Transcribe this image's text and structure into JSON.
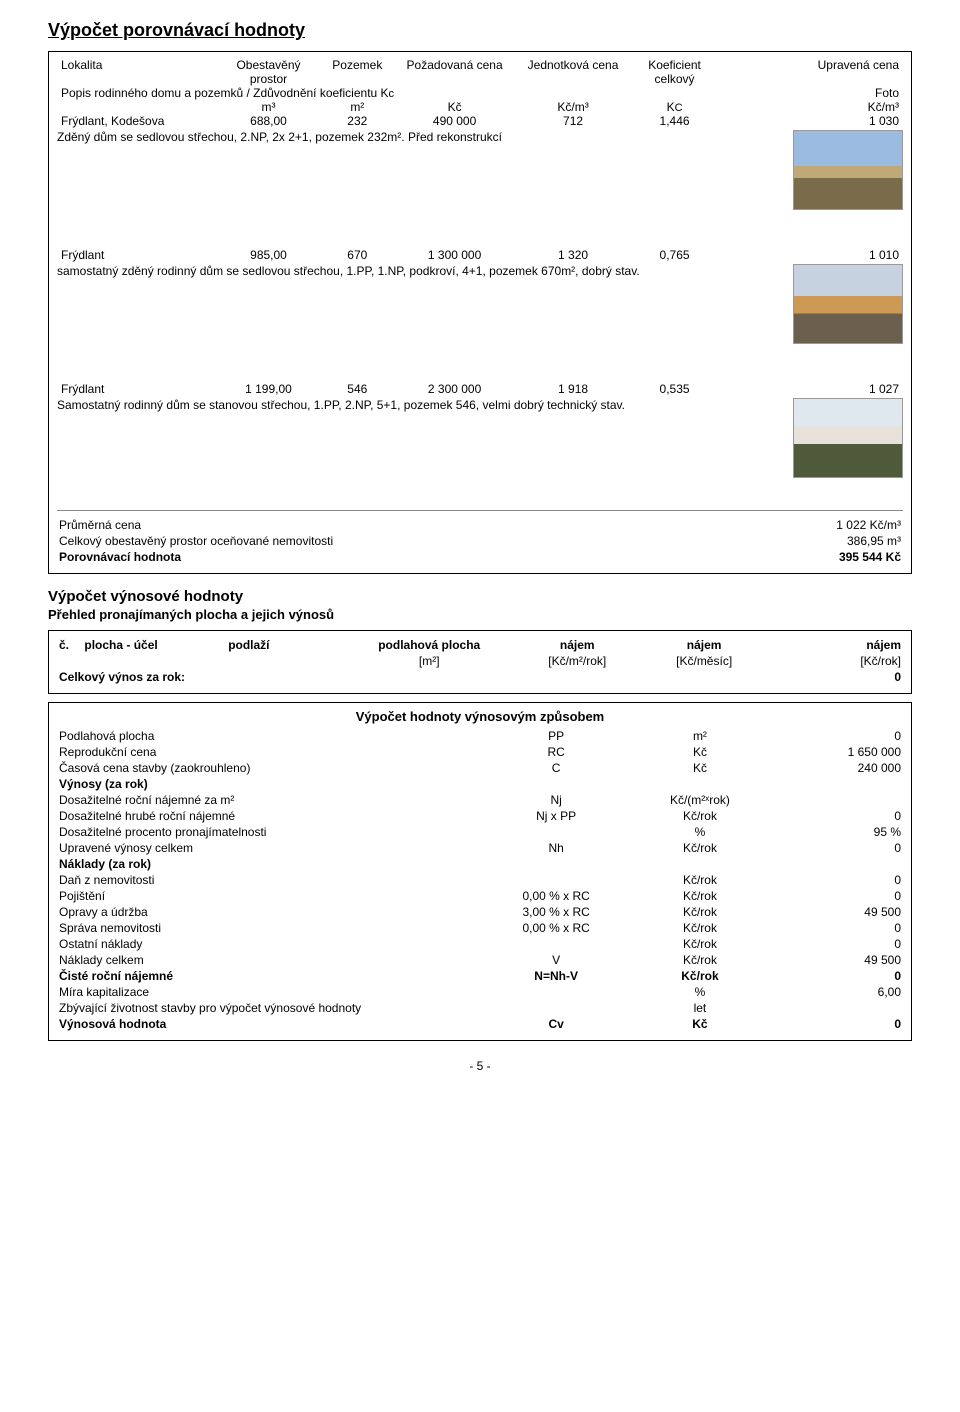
{
  "title": "Výpočet porovnávací hodnoty",
  "hdr": {
    "c1": "Lokalita",
    "c2": "Obestavěný prostor",
    "c3": "Pozemek",
    "c4": "Požadovaná cena",
    "c5": "Jednotková cena",
    "c6": "Koeficient celkový",
    "c7": "Upravená cena",
    "popis": "Popis rodinného domu a pozemků / Zdůvodnění koeficientu K",
    "popis_sub": "c",
    "foto": "Foto",
    "u_m3": "m³",
    "u_m2": "m²",
    "u_kc": "Kč",
    "u_kcm3": "Kč/m³",
    "u_kcm3b": "Kč/m³",
    "u_kc_c": "K",
    "u_kc_c_sub": "C"
  },
  "comps": [
    {
      "lok": "Frýdlant, Kodešova",
      "op": "688,00",
      "poz": "232",
      "cena": "490 000",
      "jc": "712",
      "k": "1,446",
      "upr": "1 030",
      "desc": "Zděný dům se sedlovou střechou, 2.NP, 2x 2+1, pozemek 232m². Před rekonstrukcí",
      "thumb_class": ""
    },
    {
      "lok": "Frýdlant",
      "op": "985,00",
      "poz": "670",
      "cena": "1 300 000",
      "jc": "1 320",
      "k": "0,765",
      "upr": "1 010",
      "desc": "samostatný zděný rodinný dům se sedlovou střechou, 1.PP, 1.NP, podkroví, 4+1, pozemek 670m², dobrý stav.",
      "thumb_class": "t2"
    },
    {
      "lok": "Frýdlant",
      "op": "1 199,00",
      "poz": "546",
      "cena": "2 300 000",
      "jc": "1 918",
      "k": "0,535",
      "upr": "1 027",
      "desc": "Samostatný rodinný dům se stanovou střechou, 1.PP, 2.NP, 5+1, pozemek 546, velmi dobrý technický stav.",
      "thumb_class": "t3"
    }
  ],
  "summary": {
    "avg_label": "Průměrná cena",
    "avg_val": "1 022 Kč/m³",
    "op_label": "Celkový obestavěný prostor oceňované nemovitosti",
    "op_val": "386,95 m³",
    "ph_label": "Porovnávací hodnota",
    "ph_val": "395 544 Kč"
  },
  "yield_title": "Výpočet výnosové hodnoty",
  "yield_sub": "Přehled pronajímaných plocha a jejich výnosů",
  "yield_hdr": {
    "c": "č.",
    "plocha": "plocha - účel",
    "podl": "podlaží",
    "pp": "podlahová plocha",
    "pp_u": "[m²]",
    "n1": "nájem",
    "n1_u": "[Kč/m²/rok]",
    "n2": "nájem",
    "n2_u": "[Kč/měsíc]",
    "n3": "nájem",
    "n3_u": "[Kč/rok]",
    "total": "Celkový výnos za rok:",
    "total_v": "0"
  },
  "yield2_title": "Výpočet hodnoty výnosovým způsobem",
  "y": {
    "rows": [
      {
        "a": "Podlahová plocha",
        "b": "PP",
        "c": "m²",
        "d": "0"
      },
      {
        "a": "Reprodukční cena",
        "b": "RC",
        "c": "Kč",
        "d": "1 650 000"
      },
      {
        "a": "Časová cena stavby (zaokrouhleno)",
        "b": "C",
        "c": "Kč",
        "d": "240 000"
      },
      {
        "a": "Výnosy (za rok)",
        "b": "",
        "c": "",
        "d": "",
        "bold": true
      },
      {
        "a": "Dosažitelné roční nájemné za m²",
        "b": "Nj",
        "c": "Kč/(m²ˣrok)",
        "d": ""
      },
      {
        "a": "Dosažitelné hrubé roční nájemné",
        "b": "Nj x PP",
        "c": "Kč/rok",
        "d": "0"
      },
      {
        "a": "Dosažitelné procento pronajímatelnosti",
        "b": "",
        "c": "%",
        "d": "95 %"
      },
      {
        "a": "Upravené výnosy celkem",
        "b": "Nh",
        "c": "Kč/rok",
        "d": "0"
      },
      {
        "a": "Náklady (za rok)",
        "b": "",
        "c": "",
        "d": "",
        "bold": true
      },
      {
        "a": "Daň z nemovitosti",
        "b": "",
        "c": "Kč/rok",
        "d": "0"
      },
      {
        "a": "Pojištění",
        "b": "0,00 % x RC",
        "c": "Kč/rok",
        "d": "0"
      },
      {
        "a": "Opravy a údržba",
        "b": "3,00 % x RC",
        "c": "Kč/rok",
        "d": "49 500"
      },
      {
        "a": "Správa nemovitosti",
        "b": "0,00 % x RC",
        "c": "Kč/rok",
        "d": "0"
      },
      {
        "a": "Ostatní náklady",
        "b": "",
        "c": "Kč/rok",
        "d": "0"
      },
      {
        "a": "Náklady celkem",
        "b": "V",
        "c": "Kč/rok",
        "d": "49 500"
      },
      {
        "a": "Čisté roční nájemné",
        "b": "N=Nh-V",
        "c": "Kč/rok",
        "d": "0",
        "bold": true
      },
      {
        "a": "Míra kapitalizace",
        "b": "",
        "c": "%",
        "d": "6,00"
      },
      {
        "a": "Zbývající životnost stavby pro výpočet výnosové hodnoty",
        "b": "",
        "c": "let",
        "d": ""
      },
      {
        "a": "Výnosová hodnota",
        "b": "Cv",
        "c": "Kč",
        "d": "0",
        "bold": true
      }
    ]
  },
  "footer": "- 5 -"
}
